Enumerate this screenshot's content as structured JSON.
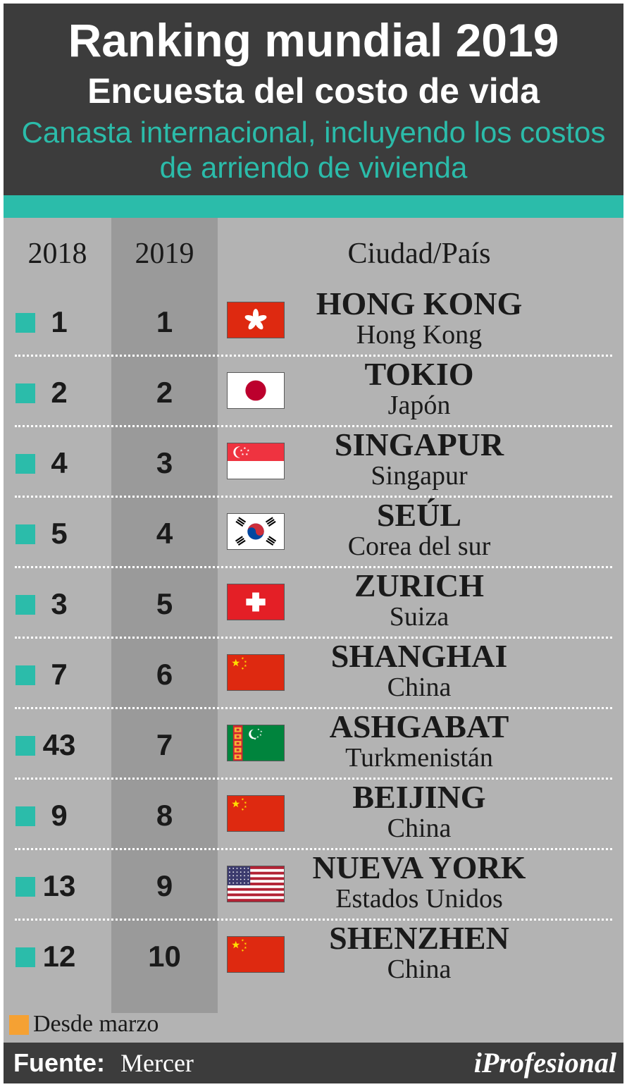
{
  "header": {
    "title": "Ranking mundial 2019",
    "subtitle": "Encuesta del costo de vida",
    "description": "Canasta internacional, incluyendo los costos de arriendo de vivienda",
    "teal_color": "#2bbcaa"
  },
  "columns": {
    "rank_2018": "2018",
    "rank_2019": "2019",
    "city_country": "Ciudad/País"
  },
  "chart_data": {
    "type": "table",
    "columns": [
      "2018",
      "2019",
      "Ciudad/País"
    ],
    "rows": [
      {
        "rank_2018": "1",
        "rank_2019": "1",
        "city": "HONG KONG",
        "country": "Hong Kong",
        "flag": "hong-kong-flag-icon",
        "marker": "teal"
      },
      {
        "rank_2018": "2",
        "rank_2019": "2",
        "city": "TOKIO",
        "country": "Japón",
        "flag": "japan-flag-icon",
        "marker": "teal"
      },
      {
        "rank_2018": "4",
        "rank_2019": "3",
        "city": "SINGAPUR",
        "country": "Singapur",
        "flag": "singapore-flag-icon",
        "marker": "teal"
      },
      {
        "rank_2018": "5",
        "rank_2019": "4",
        "city": "SEÚL",
        "country": "Corea del sur",
        "flag": "south-korea-flag-icon",
        "marker": "teal"
      },
      {
        "rank_2018": "3",
        "rank_2019": "5",
        "city": "ZURICH",
        "country": "Suiza",
        "flag": "switzerland-flag-icon",
        "marker": "teal"
      },
      {
        "rank_2018": "7",
        "rank_2019": "6",
        "city": "SHANGHAI",
        "country": "China",
        "flag": "china-flag-icon",
        "marker": "teal"
      },
      {
        "rank_2018": "43",
        "rank_2019": "7",
        "city": "ASHGABAT",
        "country": "Turkmenistán",
        "flag": "turkmenistan-flag-icon",
        "marker": "teal"
      },
      {
        "rank_2018": "9",
        "rank_2019": "8",
        "city": "BEIJING",
        "country": "China",
        "flag": "china-flag-icon",
        "marker": "teal"
      },
      {
        "rank_2018": "13",
        "rank_2019": "9",
        "city": "NUEVA YORK",
        "country": "Estados Unidos",
        "flag": "usa-flag-icon",
        "marker": "teal"
      },
      {
        "rank_2018": "12",
        "rank_2019": "10",
        "city": "SHENZHEN",
        "country": "China",
        "flag": "china-flag-icon",
        "marker": "teal"
      }
    ]
  },
  "legend": {
    "label": "Desde marzo",
    "color": "#f5a133"
  },
  "footer": {
    "source_label": "Fuente:",
    "source_value": "Mercer",
    "brand": "iProfesional"
  }
}
